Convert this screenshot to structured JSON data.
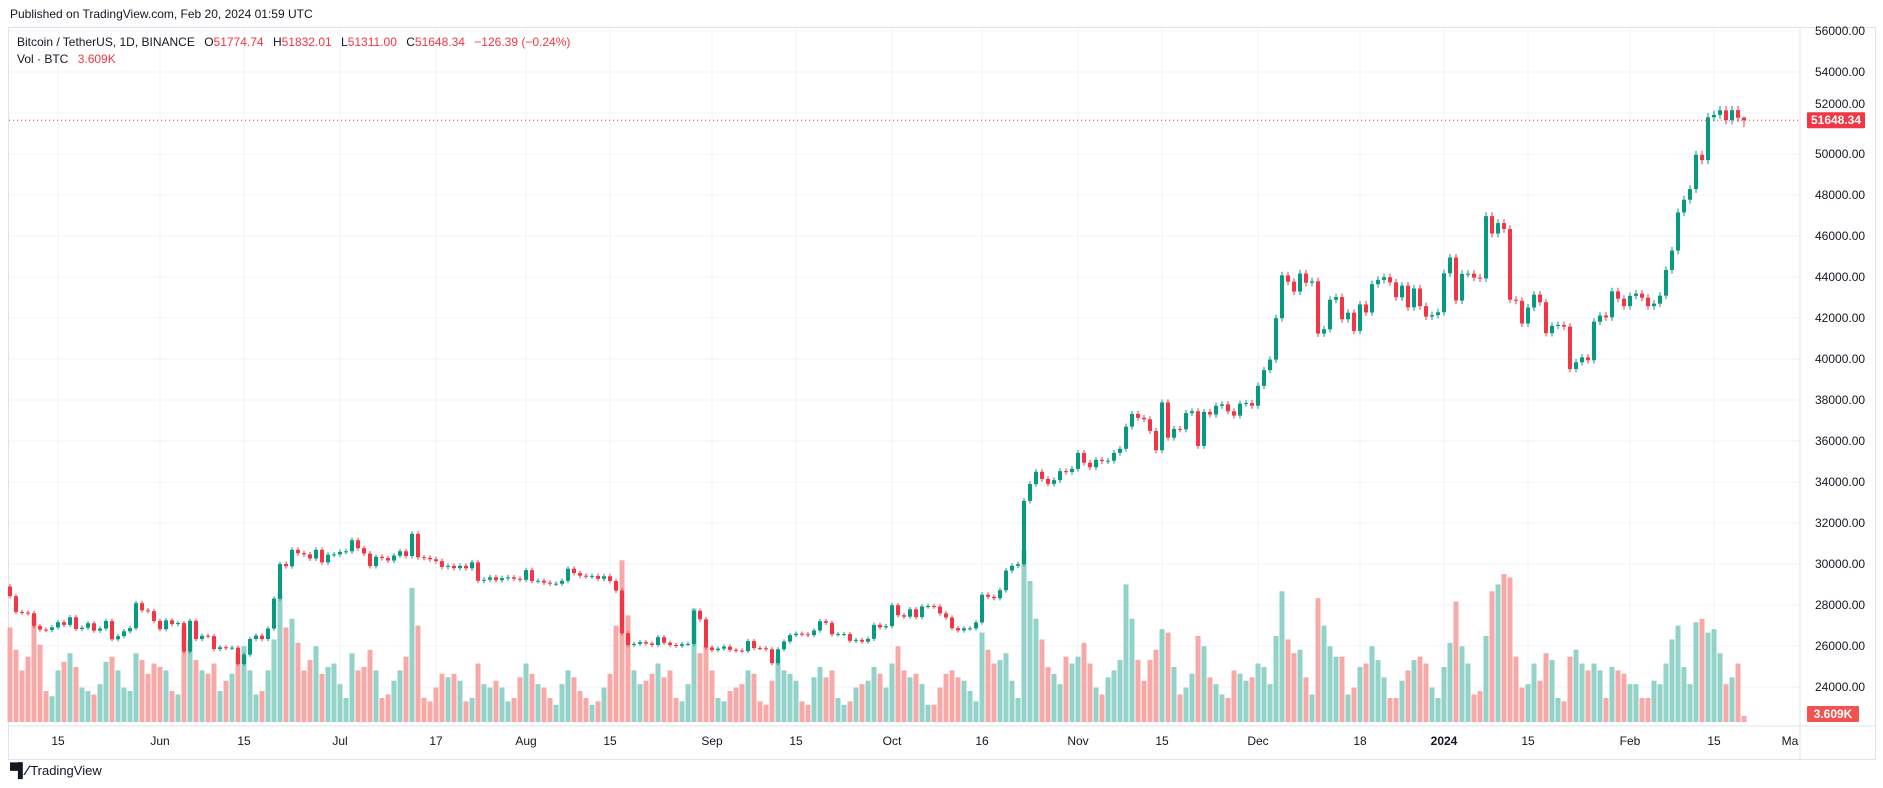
{
  "header": {
    "published": "Published on TradingView.com, Feb 20, 2024 01:59 UTC"
  },
  "legend": {
    "symbol": "Bitcoin / TetherUS, 1D, BINANCE",
    "o_label": "O",
    "o_value": "51774.74",
    "h_label": "H",
    "h_value": "51832.01",
    "l_label": "L",
    "l_value": "51311.00",
    "c_label": "C",
    "c_value": "51648.34",
    "change": "−126.39 (−0.24%)",
    "vol_label": "Vol · BTC",
    "vol_value": "3.609K"
  },
  "footer": {
    "logo_mark": "TV",
    "logo_text": "TradingView"
  },
  "colors": {
    "up": "#089981",
    "down": "#f23645",
    "up_vol": "#92d2c8",
    "down_vol": "#f7a9a7",
    "grid": "#f0f3fa",
    "axis_text": "#131722"
  },
  "chart_data": {
    "type": "candlestick",
    "title": "Bitcoin / TetherUS, 1D, BINANCE",
    "start_date": "2023-05-07",
    "end_date": "2024-02-20",
    "ylim": [
      23000,
      56500
    ],
    "y_ticks": [
      "56000.00",
      "54000.00",
      "52000.00",
      "50000.00",
      "48000.00",
      "46000.00",
      "44000.00",
      "42000.00",
      "40000.00",
      "38000.00",
      "36000.00",
      "34000.00",
      "32000.00",
      "30000.00",
      "28000.00",
      "26000.00",
      "24000.00"
    ],
    "x_ticks": [
      {
        "label": "15",
        "day": 8
      },
      {
        "label": "Jun",
        "day": 25
      },
      {
        "label": "15",
        "day": 39
      },
      {
        "label": "Jul",
        "day": 55
      },
      {
        "label": "17",
        "day": 71
      },
      {
        "label": "Aug",
        "day": 86
      },
      {
        "label": "15",
        "day": 100
      },
      {
        "label": "Sep",
        "day": 117
      },
      {
        "label": "15",
        "day": 131
      },
      {
        "label": "Oct",
        "day": 147
      },
      {
        "label": "16",
        "day": 162
      },
      {
        "label": "Nov",
        "day": 178
      },
      {
        "label": "15",
        "day": 192
      },
      {
        "label": "Dec",
        "day": 208
      },
      {
        "label": "18",
        "day": 225
      },
      {
        "label": "2024",
        "day": 239
      },
      {
        "label": "15",
        "day": 253
      },
      {
        "label": "Feb",
        "day": 270
      },
      {
        "label": "15",
        "day": 284
      },
      {
        "label": "Ma",
        "day": 299
      }
    ],
    "last_price_label": "51648.34",
    "last_volume_label": "3.609K",
    "first_open": 28900,
    "last_candle": {
      "open": 51774.74,
      "high": 51832.01,
      "low": 51311.0,
      "close": 51648.34
    },
    "close": [
      28430,
      27660,
      27630,
      27600,
      26980,
      26800,
      26780,
      26910,
      27160,
      27030,
      27400,
      26830,
      26890,
      27110,
      26750,
      26850,
      27220,
      26330,
      26480,
      26720,
      26870,
      28090,
      27740,
      27700,
      27220,
      26820,
      27250,
      27070,
      27120,
      25730,
      27230,
      26340,
      26500,
      26480,
      25850,
      25940,
      25900,
      25920,
      25120,
      25580,
      26340,
      26510,
      26340,
      26850,
      28310,
      30000,
      29890,
      30690,
      30530,
      30470,
      30270,
      30690,
      30080,
      30450,
      30470,
      30590,
      30620,
      31160,
      30770,
      30510,
      29900,
      30350,
      30290,
      30170,
      30410,
      30620,
      30390,
      31470,
      30330,
      30300,
      30230,
      30140,
      29860,
      29910,
      29800,
      29910,
      29790,
      30080,
      29180,
      29230,
      29350,
      29210,
      29310,
      29350,
      29280,
      29230,
      29700,
      29170,
      29180,
      29090,
      29040,
      29040,
      29180,
      29770,
      29560,
      29430,
      29400,
      29420,
      29280,
      29400,
      29170,
      28700,
      26620,
      26050,
      26100,
      26190,
      26120,
      26050,
      26430,
      26160,
      26050,
      26010,
      26090,
      26100,
      27720,
      27300,
      25930,
      25800,
      25870,
      25970,
      25810,
      25780,
      25750,
      26240,
      25900,
      25890,
      25840,
      25160,
      25840,
      26220,
      26530,
      26600,
      26570,
      26530,
      26760,
      27210,
      27130,
      26570,
      26580,
      26580,
      26250,
      26300,
      26210,
      26350,
      27030,
      26910,
      26970,
      27990,
      27500,
      27430,
      27790,
      27410,
      27930,
      27950,
      27920,
      27590,
      27390,
      26870,
      26760,
      26860,
      26860,
      27150,
      28500,
      28400,
      28330,
      28720,
      29680,
      29910,
      29990,
      33080,
      33900,
      34500,
      34150,
      33910,
      34090,
      34530,
      34490,
      34640,
      35420,
      34940,
      34720,
      35080,
      35020,
      35040,
      35420,
      35620,
      36700,
      37320,
      37130,
      37060,
      36490,
      35550,
      37880,
      36160,
      36590,
      36570,
      37360,
      37450,
      35760,
      37420,
      37290,
      37720,
      37790,
      37450,
      37240,
      37820,
      37850,
      37720,
      38690,
      39460,
      39970,
      41990,
      44080,
      43770,
      43290,
      44170,
      43720,
      43790,
      41240,
      41450,
      42890,
      43020,
      41940,
      42260,
      41370,
      42660,
      42270,
      43650,
      43860,
      43990,
      43740,
      43010,
      43580,
      42520,
      43440,
      42580,
      42070,
      42140,
      42280,
      44180,
      44950,
      42850,
      44150,
      44160,
      43970,
      43930,
      46970,
      46120,
      46630,
      46340,
      42890,
      42840,
      41730,
      42510,
      43140,
      42770,
      41260,
      41620,
      41660,
      41580,
      39510,
      39840,
      40080,
      39940,
      41820,
      42120,
      42030,
      43300,
      42940,
      42580,
      43080,
      43190,
      42990,
      42580,
      42700,
      43090,
      44340,
      45290,
      47150,
      47770,
      48290,
      49960,
      49700,
      51790,
      51910,
      52130,
      51650,
      52140,
      51770,
      51648.34
    ],
    "volume_k": [
      55,
      42,
      30,
      38,
      62,
      45,
      18,
      15,
      30,
      35,
      40,
      32,
      20,
      18,
      16,
      22,
      35,
      38,
      30,
      20,
      18,
      40,
      36,
      28,
      34,
      32,
      30,
      18,
      16,
      56,
      48,
      36,
      30,
      28,
      34,
      18,
      24,
      28,
      40,
      44,
      30,
      16,
      18,
      30,
      48,
      75,
      55,
      60,
      46,
      30,
      36,
      44,
      28,
      32,
      34,
      22,
      14,
      40,
      30,
      32,
      42,
      30,
      14,
      16,
      24,
      30,
      38,
      78,
      56,
      14,
      12,
      20,
      28,
      26,
      28,
      24,
      12,
      14,
      34,
      22,
      20,
      24,
      20,
      12,
      14,
      26,
      34,
      28,
      22,
      20,
      14,
      10,
      22,
      30,
      26,
      18,
      14,
      10,
      12,
      20,
      28,
      56,
      94,
      62,
      30,
      22,
      24,
      28,
      34,
      26,
      30,
      14,
      12,
      22,
      66,
      40,
      44,
      30,
      14,
      12,
      18,
      20,
      22,
      30,
      28,
      12,
      10,
      24,
      38,
      30,
      28,
      24,
      12,
      10,
      26,
      32,
      26,
      30,
      14,
      10,
      12,
      20,
      22,
      24,
      32,
      28,
      20,
      34,
      44,
      30,
      26,
      28,
      22,
      10,
      10,
      20,
      28,
      30,
      26,
      24,
      18,
      12,
      52,
      42,
      34,
      36,
      40,
      24,
      14,
      100,
      82,
      60,
      48,
      32,
      28,
      22,
      38,
      34,
      38,
      46,
      34,
      20,
      16,
      26,
      30,
      36,
      80,
      60,
      36,
      24,
      36,
      42,
      54,
      52,
      32,
      16,
      20,
      28,
      50,
      44,
      26,
      22,
      16,
      14,
      30,
      28,
      24,
      26,
      34,
      32,
      22,
      50,
      76,
      48,
      40,
      42,
      26,
      16,
      72,
      56,
      44,
      38,
      38,
      16,
      20,
      32,
      34,
      44,
      36,
      26,
      14,
      14,
      24,
      30,
      36,
      38,
      34,
      20,
      14,
      32,
      46,
      70,
      44,
      34,
      16,
      18,
      50,
      76,
      80,
      86,
      84,
      38,
      20,
      22,
      34,
      24,
      40,
      36,
      14,
      12,
      38,
      42,
      34,
      30,
      34,
      30,
      14,
      32,
      30,
      28,
      22,
      22,
      14,
      14,
      24,
      22,
      34,
      48,
      56,
      32,
      22,
      58,
      60,
      52,
      54,
      40,
      22,
      26,
      34,
      3.609
    ]
  }
}
